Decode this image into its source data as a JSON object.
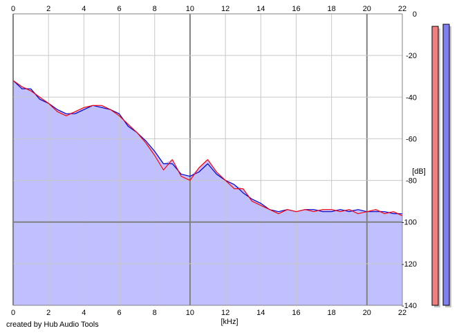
{
  "footer": {
    "credit": "created by Hub Audio Tools"
  },
  "colors": {
    "plot_background": "#ffffff",
    "fill": "#c0c0ff",
    "channel_left": "#ff0000",
    "channel_right": "#0000cc",
    "grid_minor": "#c8c8c8",
    "grid_major": "#808080",
    "meter_left": "#f08080",
    "meter_right": "#8080f0",
    "meter_shadow": "#c4c4c4"
  },
  "meters": {
    "left_level_db": -6,
    "right_level_db": -5
  },
  "chart_data": {
    "type": "line",
    "xlabel": "[kHz]",
    "ylabel": "[dB]",
    "xlim": [
      0,
      22
    ],
    "ylim": [
      -140,
      0
    ],
    "x_ticks": [
      "0",
      "2",
      "4",
      "6",
      "8",
      "10",
      "12",
      "14",
      "16",
      "18",
      "20",
      "22"
    ],
    "y_ticks": [
      "0",
      "-20",
      "-40",
      "-60",
      "-80",
      "-100",
      "-120",
      "-140"
    ],
    "grid": true,
    "x": [
      0,
      0.5,
      1,
      1.5,
      2,
      2.5,
      3,
      3.5,
      4,
      4.5,
      5,
      5.5,
      6,
      6.5,
      7,
      7.5,
      8,
      8.5,
      9,
      9.5,
      10,
      10.5,
      11,
      11.5,
      12,
      12.5,
      13,
      13.5,
      14,
      14.5,
      15,
      15.5,
      16,
      16.5,
      17,
      17.5,
      18,
      18.5,
      19,
      19.5,
      20,
      20.5,
      21,
      21.5,
      22
    ],
    "series": [
      {
        "values": [
          -32,
          -35,
          -37,
          -40,
          -43,
          -47,
          -49,
          -47,
          -45,
          -44,
          -44,
          -46,
          -49,
          -53,
          -57,
          -62,
          -68,
          -75,
          -70,
          -78,
          -80,
          -74,
          -70,
          -76,
          -80,
          -84,
          -84,
          -90,
          -92,
          -94,
          -96,
          -94,
          -95,
          -94,
          -95,
          -94,
          -94,
          -95,
          -94,
          -96,
          -95,
          -94,
          -96,
          -95,
          -97
        ]
      },
      {
        "values": [
          -32,
          -36,
          -36,
          -41,
          -43,
          -46,
          -48,
          -48,
          -46,
          -44,
          -45,
          -46,
          -48,
          -54,
          -57,
          -61,
          -66,
          -72,
          -72,
          -77,
          -78,
          -76,
          -72,
          -77,
          -80,
          -82,
          -86,
          -89,
          -91,
          -94,
          -95,
          -94,
          -95,
          -94,
          -94,
          -95,
          -95,
          -94,
          -95,
          -94,
          -95,
          -95,
          -95,
          -96,
          -96
        ]
      }
    ]
  }
}
